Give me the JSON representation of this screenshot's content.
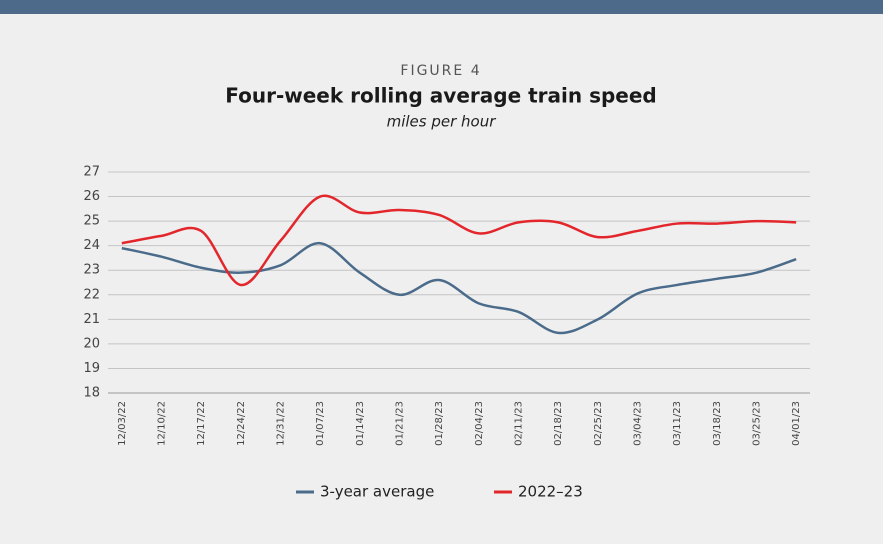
{
  "chart_data": {
    "type": "line",
    "figure_label": "FIGURE 4",
    "title": "Four-week rolling average train speed",
    "subtitle": "miles per hour",
    "categories": [
      "12/03/22",
      "12/10/22",
      "12/17/22",
      "12/24/22",
      "12/31/22",
      "01/07/23",
      "01/14/23",
      "01/21/23",
      "01/28/23",
      "02/04/23",
      "02/11/23",
      "02/18/23",
      "02/25/23",
      "03/04/23",
      "03/11/23",
      "03/18/23",
      "03/25/23",
      "04/01/23"
    ],
    "series": [
      {
        "name": "3-year average",
        "color": "#4a6b8a",
        "values": [
          23.9,
          23.55,
          23.1,
          22.9,
          23.2,
          24.1,
          22.9,
          22.0,
          22.6,
          21.65,
          21.3,
          20.45,
          21.0,
          22.05,
          22.4,
          22.65,
          22.9,
          23.45
        ]
      },
      {
        "name": "2022–23",
        "color": "#e3262b",
        "values": [
          24.1,
          24.4,
          24.6,
          22.4,
          24.2,
          26.0,
          25.35,
          25.45,
          25.25,
          24.5,
          24.95,
          24.95,
          24.35,
          24.6,
          24.9,
          24.9,
          25.0,
          24.95
        ]
      }
    ],
    "ylim": [
      18,
      27
    ],
    "yticks": [
      18,
      19,
      20,
      21,
      22,
      23,
      24,
      25,
      26,
      27
    ],
    "grid": true,
    "legend": "bottom"
  }
}
